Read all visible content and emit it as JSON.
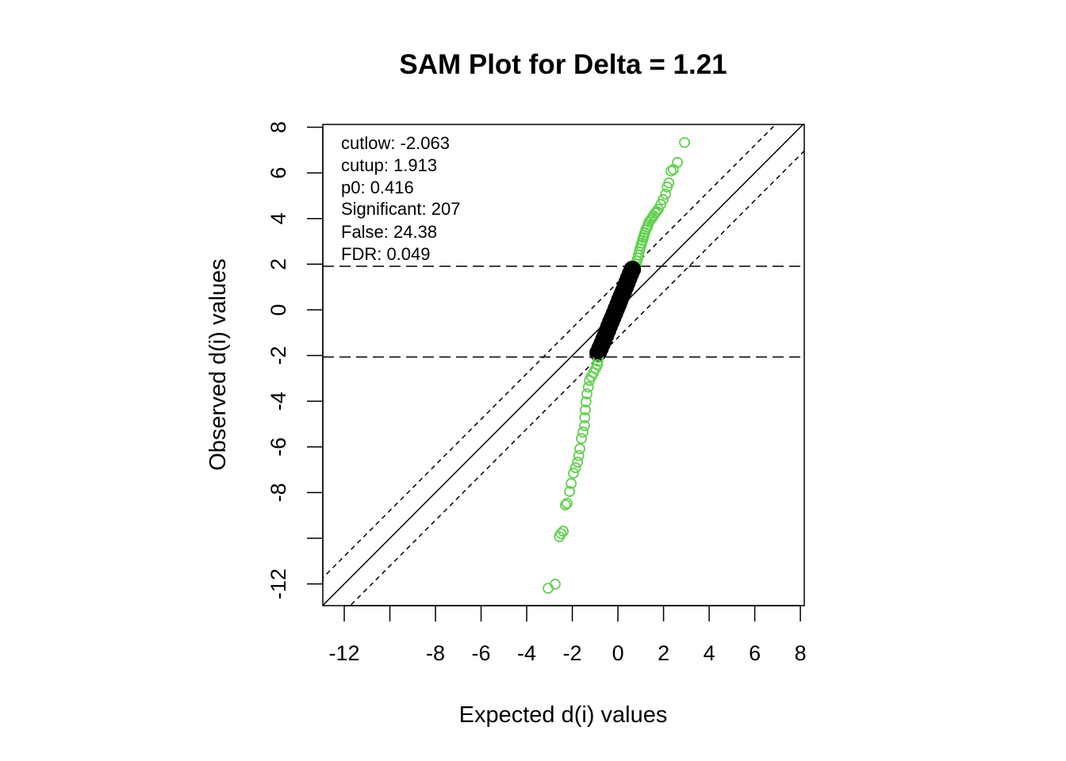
{
  "chart_data": {
    "type": "scatter",
    "title": "SAM Plot for Delta = 1.21",
    "xlabel": "Expected d(i) values",
    "ylabel": "Observed d(i) values",
    "xlim": [
      -12.94,
      8.17
    ],
    "ylim": [
      -12.95,
      8.12
    ],
    "xticks": [
      -12,
      -10,
      -8,
      -6,
      -4,
      -2,
      0,
      2,
      4,
      6,
      8
    ],
    "xtick_labels": [
      "-12",
      "",
      "-8",
      "-6",
      "-4",
      "-2",
      "0",
      "2",
      "4",
      "6",
      "8"
    ],
    "yticks": [
      8,
      6,
      4,
      2,
      0,
      -2,
      -4,
      -6,
      -8,
      -10,
      -12
    ],
    "ytick_labels": [
      "8",
      "6",
      "4",
      "2",
      "0",
      "-2",
      "-4",
      "-6",
      "-8",
      "",
      "-12"
    ],
    "delta": 1.21,
    "cutlow": -2.063,
    "cutup": 1.913,
    "legend_position": "top-left",
    "annotations": [
      "cutlow:  -2.063",
      "cutup:  1.913",
      "p0:  0.416",
      "Significant:  207",
      "False:  24.38",
      "FDR:  0.049"
    ],
    "colors": {
      "significant": "#61D04F",
      "nonsignificant": "#000000"
    },
    "series": [
      {
        "name": "significant-up",
        "color": "#61D04F",
        "points": [
          [
            2.92,
            7.33
          ],
          [
            2.61,
            6.46
          ],
          [
            2.43,
            6.15
          ],
          [
            2.33,
            6.08
          ],
          [
            2.23,
            5.56
          ],
          [
            2.16,
            5.38
          ],
          [
            2.09,
            5.07
          ],
          [
            1.98,
            4.83
          ],
          [
            1.88,
            4.62
          ],
          [
            1.77,
            4.41
          ],
          [
            1.7,
            4.32
          ],
          [
            1.63,
            4.24
          ],
          [
            1.56,
            4.12
          ],
          [
            1.5,
            4.03
          ],
          [
            1.43,
            3.94
          ],
          [
            1.36,
            3.85
          ],
          [
            1.32,
            3.72
          ],
          [
            1.28,
            3.62
          ],
          [
            1.22,
            3.51
          ],
          [
            1.18,
            3.38
          ],
          [
            1.14,
            3.26
          ],
          [
            1.11,
            3.16
          ],
          [
            1.08,
            3.04
          ],
          [
            1.04,
            2.92
          ],
          [
            1.01,
            2.81
          ],
          [
            0.97,
            2.68
          ],
          [
            0.94,
            2.54
          ],
          [
            0.9,
            2.4
          ],
          [
            0.87,
            2.27
          ],
          [
            0.83,
            2.14
          ],
          [
            0.8,
            2.01
          ],
          [
            0.73,
            1.92
          ],
          [
            0.66,
            1.84
          ]
        ]
      },
      {
        "name": "nonsignificant",
        "color": "#000000",
        "points": [
          [
            0.63,
            1.77
          ],
          [
            0.55,
            1.58
          ],
          [
            0.47,
            1.39
          ],
          [
            0.4,
            1.2
          ],
          [
            0.32,
            1.0
          ],
          [
            0.24,
            0.81
          ],
          [
            0.16,
            0.62
          ],
          [
            0.08,
            0.43
          ],
          [
            0.01,
            0.24
          ],
          [
            -0.07,
            0.05
          ],
          [
            -0.15,
            -0.15
          ],
          [
            -0.23,
            -0.34
          ],
          [
            -0.31,
            -0.53
          ],
          [
            -0.39,
            -0.72
          ],
          [
            -0.46,
            -0.91
          ],
          [
            -0.54,
            -1.11
          ],
          [
            -0.62,
            -1.3
          ],
          [
            -0.7,
            -1.49
          ],
          [
            -0.78,
            -1.68
          ],
          [
            -0.87,
            -1.88
          ]
        ]
      },
      {
        "name": "significant-down",
        "color": "#61D04F",
        "points": [
          [
            -0.86,
            -2.08
          ],
          [
            -0.88,
            -2.24
          ],
          [
            -0.9,
            -2.4
          ],
          [
            -0.98,
            -2.58
          ],
          [
            -1.07,
            -2.75
          ],
          [
            -1.16,
            -2.92
          ],
          [
            -1.25,
            -3.09
          ],
          [
            -1.3,
            -3.38
          ],
          [
            -1.36,
            -3.68
          ],
          [
            -1.4,
            -4.03
          ],
          [
            -1.43,
            -4.38
          ],
          [
            -1.45,
            -4.72
          ],
          [
            -1.46,
            -5.07
          ],
          [
            -1.53,
            -5.35
          ],
          [
            -1.6,
            -5.63
          ],
          [
            -1.67,
            -6.08
          ],
          [
            -1.72,
            -6.38
          ],
          [
            -1.77,
            -6.67
          ],
          [
            -1.86,
            -6.91
          ],
          [
            -1.95,
            -7.15
          ],
          [
            -2.05,
            -7.6
          ],
          [
            -2.12,
            -7.95
          ],
          [
            -2.23,
            -8.47
          ],
          [
            -2.3,
            -8.54
          ],
          [
            -2.4,
            -9.69
          ],
          [
            -2.5,
            -9.8
          ],
          [
            -2.57,
            -9.93
          ],
          [
            -2.75,
            -12.01
          ],
          [
            -3.06,
            -12.19
          ]
        ]
      }
    ]
  }
}
